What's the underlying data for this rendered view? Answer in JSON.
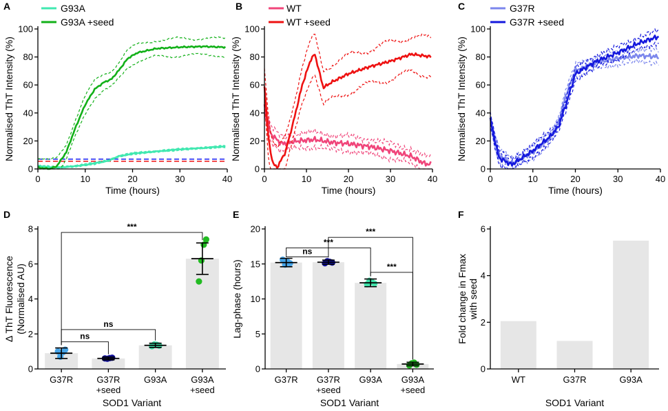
{
  "colors": {
    "g93a": "#40E8B0",
    "g93a_seed": "#12B018",
    "wt": "#F0457A",
    "wt_seed": "#EE1111",
    "g37r": "#7B86EC",
    "g37r_seed": "#1418DD",
    "ref_blue": "#1A1AEE",
    "ref_red": "#EE1111",
    "bar_fill": "#E6E6E6",
    "dot_g37r": "#47A5E8",
    "dot_g37r_seed": "#10109A",
    "dot_g93a": "#3FE0A8",
    "dot_g93a_seed": "#22BB22"
  },
  "panels": {
    "A": {
      "letter": "A",
      "legend": [
        "G93A",
        "G93A +seed"
      ]
    },
    "B": {
      "letter": "B",
      "legend": [
        "WT",
        "WT +seed"
      ]
    },
    "C": {
      "letter": "C",
      "legend": [
        "G37R",
        "G37R +seed"
      ]
    },
    "D": {
      "letter": "D"
    },
    "E": {
      "letter": "E"
    },
    "F": {
      "letter": "F"
    }
  },
  "chart_data": [
    {
      "id": "A",
      "type": "line",
      "xlabel": "Time (hours)",
      "ylabel": "Normalised ThT Intensity (%)",
      "xlim": [
        0,
        40
      ],
      "ylim": [
        0,
        100
      ],
      "xticks": [
        "0",
        "10",
        "20",
        "30",
        "40"
      ],
      "yticks": [
        "0",
        "20",
        "40",
        "60",
        "80",
        "100"
      ],
      "series": [
        {
          "name": "G93A",
          "color_key": "g93a",
          "ci": 0.8,
          "points": [
            [
              0,
              2
            ],
            [
              4,
              1
            ],
            [
              8,
              2
            ],
            [
              12,
              4
            ],
            [
              15,
              6
            ],
            [
              17,
              9
            ],
            [
              20,
              11
            ],
            [
              25,
              12.5
            ],
            [
              30,
              14
            ],
            [
              35,
              15
            ],
            [
              39,
              16
            ]
          ]
        },
        {
          "name": "G93A +seed",
          "color_key": "g93a_seed",
          "ci": 7,
          "points": [
            [
              0,
              1
            ],
            [
              2.5,
              0
            ],
            [
              4,
              2
            ],
            [
              6,
              12
            ],
            [
              8,
              30
            ],
            [
              10,
              46
            ],
            [
              12,
              57
            ],
            [
              14,
              62
            ],
            [
              15.5,
              64
            ],
            [
              17,
              70
            ],
            [
              19,
              79
            ],
            [
              21,
              83
            ],
            [
              25,
              86
            ],
            [
              30,
              87
            ],
            [
              35,
              87.5
            ],
            [
              39,
              87
            ]
          ]
        }
      ],
      "reference_lines": [
        {
          "y": 7,
          "color_key": "ref_blue"
        },
        {
          "y": 5.5,
          "color_key": "ref_red"
        }
      ]
    },
    {
      "id": "B",
      "type": "line",
      "xlabel": "Time (hours)",
      "ylabel": "Normalised ThT Intensity (%)",
      "xlim": [
        0,
        40
      ],
      "ylim": [
        0,
        100
      ],
      "xticks": [
        "0",
        "10",
        "20",
        "30",
        "40"
      ],
      "yticks": [
        "0",
        "20",
        "40",
        "60",
        "80",
        "100"
      ],
      "series": [
        {
          "name": "WT",
          "color_key": "wt",
          "ci": 6,
          "points": [
            [
              0,
              45
            ],
            [
              1.5,
              25
            ],
            [
              4,
              18
            ],
            [
              8,
              20
            ],
            [
              12,
              21
            ],
            [
              16,
              19
            ],
            [
              20,
              18
            ],
            [
              25,
              16
            ],
            [
              30,
              13
            ],
            [
              35,
              9
            ],
            [
              38,
              4
            ],
            [
              40,
              3
            ]
          ]
        },
        {
          "name": "WT +seed",
          "color_key": "wt_seed",
          "ci": 15,
          "points": [
            [
              0,
              60
            ],
            [
              1,
              20
            ],
            [
              2,
              4
            ],
            [
              3,
              1
            ],
            [
              5,
              12
            ],
            [
              7,
              35
            ],
            [
              9,
              60
            ],
            [
              11,
              78
            ],
            [
              12,
              82
            ],
            [
              13,
              70
            ],
            [
              14,
              58
            ],
            [
              16,
              62
            ],
            [
              20,
              68
            ],
            [
              25,
              73
            ],
            [
              30,
              77
            ],
            [
              35,
              82
            ],
            [
              40,
              80
            ]
          ]
        }
      ]
    },
    {
      "id": "C",
      "type": "line",
      "xlabel": "Time (hours)",
      "ylabel": "Normalised ThT Intensity (%)",
      "xlim": [
        0,
        40
      ],
      "ylim": [
        0,
        100
      ],
      "xticks": [
        "0",
        "10",
        "20",
        "30",
        "40"
      ],
      "yticks": [
        "0",
        "20",
        "40",
        "60",
        "80",
        "100"
      ],
      "series": [
        {
          "name": "G37R",
          "color_key": "g37r",
          "ci": 5,
          "points": [
            [
              0,
              33
            ],
            [
              2,
              10
            ],
            [
              5,
              4
            ],
            [
              10,
              12
            ],
            [
              14,
              22
            ],
            [
              16,
              33
            ],
            [
              18,
              55
            ],
            [
              20,
              70
            ],
            [
              25,
              76
            ],
            [
              30,
              79
            ],
            [
              35,
              81
            ],
            [
              40,
              80
            ]
          ]
        },
        {
          "name": "G37R +seed",
          "color_key": "g37r_seed",
          "ci": 5,
          "points": [
            [
              0,
              35
            ],
            [
              2,
              8
            ],
            [
              5,
              3
            ],
            [
              10,
              13
            ],
            [
              14,
              23
            ],
            [
              16,
              30
            ],
            [
              18,
              48
            ],
            [
              20,
              68
            ],
            [
              25,
              77
            ],
            [
              30,
              83
            ],
            [
              35,
              90
            ],
            [
              40,
              95
            ]
          ]
        }
      ]
    },
    {
      "id": "D",
      "type": "bar",
      "ylabel": "Δ ThT Fluorescence",
      "ylabel2": "(Normalised AU)",
      "xlabel": "SOD1 Variant",
      "ylim": [
        0,
        8
      ],
      "yticks": [
        "0",
        "2",
        "4",
        "6",
        "8"
      ],
      "categories": [
        {
          "line1": "G37R",
          "line2": ""
        },
        {
          "line1": "G37R",
          "line2": "+seed"
        },
        {
          "line1": "G93A",
          "line2": ""
        },
        {
          "line1": "G93A",
          "line2": "+seed"
        }
      ],
      "values": [
        0.9,
        0.6,
        1.35,
        6.3
      ],
      "errors": [
        0.3,
        0.08,
        0.12,
        0.9
      ],
      "dot_keys": [
        "dot_g37r",
        "dot_g37r_seed",
        "dot_g93a",
        "dot_g93a_seed"
      ],
      "points": [
        [
          1.0,
          0.7,
          0.95,
          1.1
        ],
        [
          0.6,
          0.58,
          0.62,
          0.64
        ],
        [
          1.3,
          1.4,
          1.38,
          1.33
        ],
        [
          5.0,
          6.2,
          7.1,
          7.4
        ]
      ],
      "brackets": [
        {
          "from": 0,
          "to": 3,
          "y": 7.8,
          "label": "***"
        },
        {
          "from": 0,
          "to": 2,
          "y": 2.25,
          "label": "ns"
        },
        {
          "from": 0,
          "to": 1,
          "y": 1.55,
          "label": "ns"
        }
      ]
    },
    {
      "id": "E",
      "type": "bar",
      "ylabel": "Lag-phase (hours)",
      "xlabel": "SOD1 Variant",
      "ylim": [
        0,
        20
      ],
      "yticks": [
        "0",
        "5",
        "10",
        "15",
        "20"
      ],
      "categories": [
        {
          "line1": "G37R",
          "line2": ""
        },
        {
          "line1": "G37R",
          "line2": "+seed"
        },
        {
          "line1": "G93A",
          "line2": ""
        },
        {
          "line1": "G93A",
          "line2": "+seed"
        }
      ],
      "values": [
        15.2,
        15.25,
        12.3,
        0.7
      ],
      "errors": [
        0.6,
        0.3,
        0.55,
        0.25
      ],
      "dot_keys": [
        "dot_g37r",
        "dot_g37r_seed",
        "dot_g93a",
        "dot_g93a_seed"
      ],
      "points": [
        [
          15.6,
          14.9,
          15.3,
          15.1
        ],
        [
          15.1,
          15.4,
          15.3,
          15.2
        ],
        [
          12.1,
          12.6,
          12.4,
          12.2
        ],
        [
          0.5,
          0.8,
          0.9,
          0.6
        ]
      ],
      "brackets": [
        {
          "from": 1,
          "to": 3,
          "y": 18.8,
          "label": "***"
        },
        {
          "from": 0,
          "to": 2,
          "y": 17.3,
          "label": "***"
        },
        {
          "from": 0,
          "to": 1,
          "y": 16.0,
          "label": "ns"
        },
        {
          "from": 2,
          "to": 3,
          "y": 13.8,
          "label": "***"
        }
      ]
    },
    {
      "id": "F",
      "type": "bar",
      "ylabel": "Fold change in Fmax",
      "ylabel2": "with seed",
      "xlabel": "SOD1 Variant",
      "ylim": [
        0,
        6
      ],
      "yticks": [
        "0",
        "2",
        "4",
        "6"
      ],
      "categories": [
        {
          "line1": "WT",
          "line2": ""
        },
        {
          "line1": "G37R",
          "line2": ""
        },
        {
          "line1": "G93A",
          "line2": ""
        }
      ],
      "values": [
        2.05,
        1.2,
        5.5
      ]
    }
  ]
}
